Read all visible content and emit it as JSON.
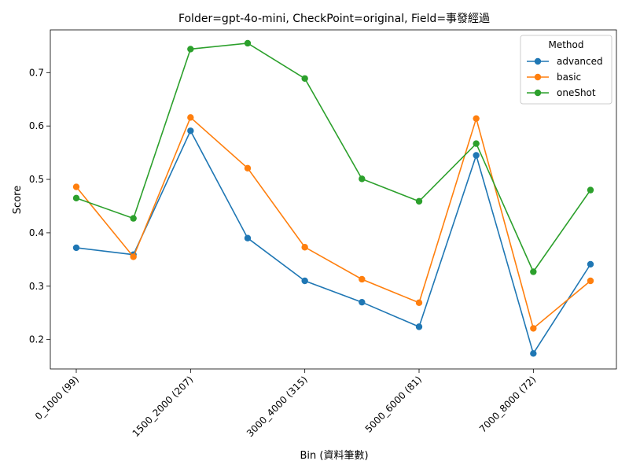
{
  "chart_data": {
    "type": "line",
    "title": "Folder=gpt-4o-mini, CheckPoint=original, Field=事發經過",
    "xlabel": "Bin (資料筆數)",
    "ylabel": "Score",
    "x_tick_labels": [
      "0_1000 (99)",
      "1500_2000 (207)",
      "3000_4000 (315)",
      "5000_6000 (81)",
      "7000_8000 (72)"
    ],
    "x_tick_positions": [
      0,
      2,
      4,
      6,
      8
    ],
    "point_count": 10,
    "y_ticks": [
      0.2,
      0.3,
      0.4,
      0.5,
      0.6,
      0.7
    ],
    "ylim": [
      0.145,
      0.78
    ],
    "grid": false,
    "legend": {
      "title": "Method",
      "placement": "top-right"
    },
    "series": [
      {
        "name": "advanced",
        "color": "#1f77b4",
        "values": [
          0.372,
          0.359,
          0.591,
          0.39,
          0.31,
          0.27,
          0.224,
          0.545,
          0.174,
          0.341
        ]
      },
      {
        "name": "basic",
        "color": "#ff7f0e",
        "values": [
          0.486,
          0.355,
          0.616,
          0.521,
          0.373,
          0.313,
          0.269,
          0.614,
          0.221,
          0.31
        ]
      },
      {
        "name": "oneShot",
        "color": "#2ca02c",
        "values": [
          0.465,
          0.427,
          0.744,
          0.755,
          0.689,
          0.501,
          0.459,
          0.567,
          0.327,
          0.48
        ]
      }
    ]
  }
}
